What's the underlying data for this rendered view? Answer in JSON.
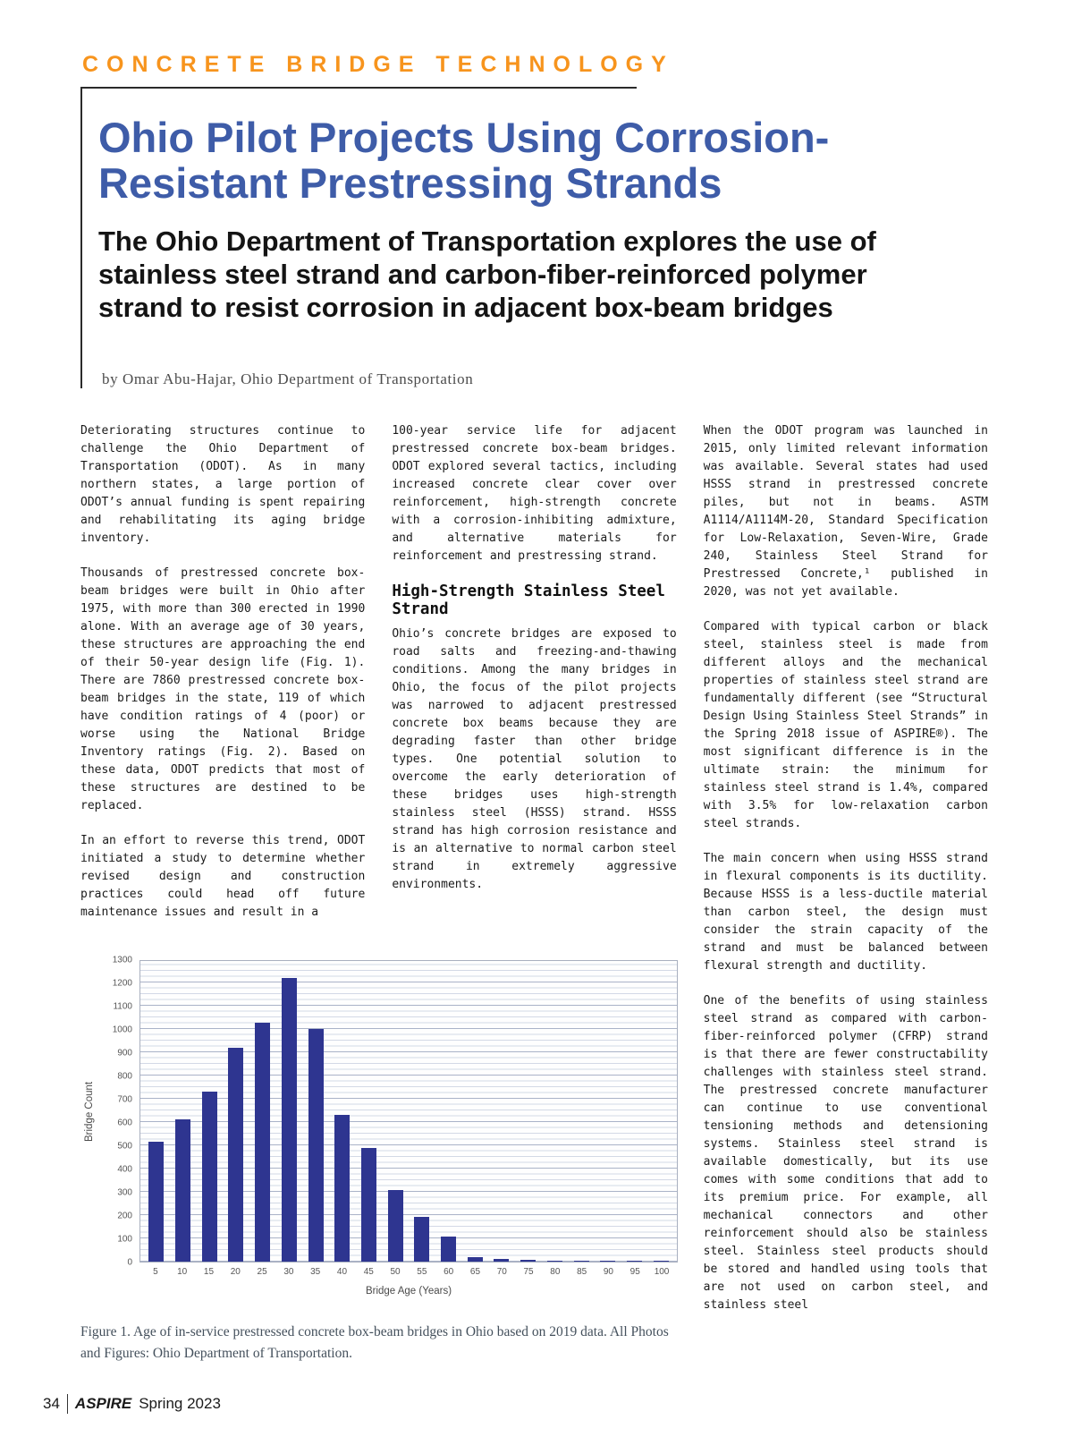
{
  "colors": {
    "kicker_orange": "#f7941d",
    "title_blue": "#3e5ca8",
    "bar_navy": "#2e3590"
  },
  "header": {
    "kicker": "CONCRETE BRIDGE TECHNOLOGY",
    "title_line1": "Ohio Pilot Projects Using Corrosion-",
    "title_line2": "Resistant Prestressing Strands",
    "subtitle": "The Ohio Department of Transportation explores the use of stainless steel strand and carbon-fiber-reinforced polymer strand to resist corrosion in adjacent box-beam bridges",
    "byline": "by Omar Abu-Hajar, Ohio Department of Transportation"
  },
  "article": {
    "col1": [
      "Deteriorating structures continue to challenge the Ohio Department of Transportation (ODOT). As in many northern states, a large portion of ODOT’s annual funding is spent repairing and rehabilitating its aging bridge inventory.",
      "Thousands of prestressed concrete box-beam bridges were built in Ohio after 1975, with more than 300 erected in 1990 alone. With an average age of 30 years, these structures are approaching the end of their 50-year design life (Fig. 1). There are 7860 prestressed concrete box-beam bridges in the state, 119 of which have condition ratings of 4 (poor) or worse using the National Bridge Inventory ratings (Fig. 2). Based on these data, ODOT predicts that most of these structures are destined to be replaced.",
      "In an effort to reverse this trend, ODOT initiated a study to determine whether revised design and construction practices could head off future maintenance issues and result in a"
    ],
    "col2": [
      "100-year service life for adjacent prestressed concrete box-beam bridges. ODOT explored several tactics, including increased concrete clear cover over reinforcement, high-strength concrete with a corrosion-inhibiting admixture, and alternative materials for reinforcement and prestressing strand.",
      "Ohio’s concrete bridges are exposed to road salts and freezing-and-thawing conditions. Among the many bridges in Ohio, the focus of the pilot projects was narrowed to adjacent prestressed concrete box beams because they are degrading faster than other bridge types. One potential solution to overcome the early deterioration of these bridges uses high-strength stainless steel (HSSS) strand. HSSS strand has high corrosion resistance and is an alternative to normal carbon steel strand in extremely aggressive environments."
    ],
    "col2_heading": "High-Strength Stainless Steel Strand",
    "col3": [
      "When the ODOT program was launched in 2015, only limited relevant information was available. Several states had used HSSS strand in prestressed concrete piles, but not in beams. ASTM A1114/A1114M-20, Standard Specification for Low-Relaxation, Seven-Wire, Grade 240, Stainless Steel Strand for Prestressed Concrete,¹ published in 2020, was not yet available.",
      "Compared with typical carbon or black steel, stainless steel is made from different alloys and the mechanical properties of stainless steel strand are fundamentally different (see “Structural Design Using Stainless Steel Strands” in the Spring 2018 issue of ASPIRE®). The most significant difference is in the ultimate strain: the minimum for stainless steel strand is 1.4%, compared with 3.5% for low-relaxation carbon steel strands.",
      "The main concern when using HSSS strand in flexural components is its ductility. Because HSSS is a less-ductile material than carbon steel, the design must consider the strain capacity of the strand and must be balanced between flexural strength and ductility.",
      "One of the benefits of using stainless steel strand as compared with carbon-fiber-reinforced polymer (CFRP) strand is that there are fewer constructability challenges with stainless steel strand. The prestressed concrete manufacturer can continue to use conventional tensioning methods and detensioning systems. Stainless steel strand is available domestically, but its use comes with some conditions that add to its premium price. For example, all mechanical connectors and other reinforcement should also be stainless steel. Stainless steel products should be stored and handled using tools that are not used on carbon steel, and stainless steel"
    ]
  },
  "figure": {
    "caption": "Figure 1. Age of in-service prestressed concrete box-beam bridges in Ohio based on 2019 data.  All Photos and Figures: Ohio Department of Transportation."
  },
  "chart_data": {
    "type": "bar",
    "title": "",
    "categories": [
      5,
      10,
      15,
      20,
      25,
      30,
      35,
      40,
      45,
      50,
      55,
      60,
      65,
      70,
      75,
      80,
      85,
      90,
      95,
      100
    ],
    "values": [
      520,
      615,
      735,
      925,
      1035,
      1225,
      1005,
      635,
      490,
      310,
      195,
      110,
      20,
      10,
      8,
      6,
      5,
      4,
      4,
      4
    ],
    "xlabel": "Bridge Age (Years)",
    "ylabel": "Bridge Count",
    "ylim": [
      0,
      1300
    ],
    "ytick_step": 100,
    "grid": true,
    "bar_color": "#2e3590"
  },
  "footer": {
    "page_number": "34",
    "magazine": "ASPIRE",
    "issue": "Spring 2023"
  }
}
